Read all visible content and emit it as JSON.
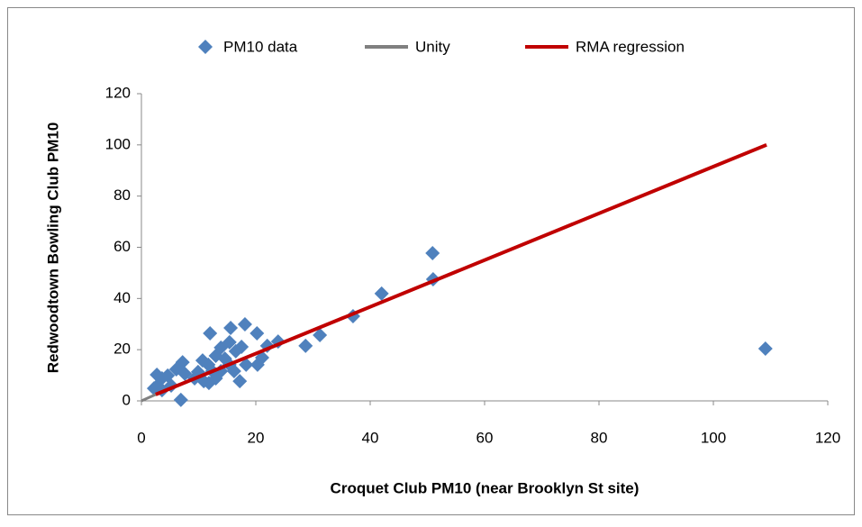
{
  "chart_data": {
    "type": "scatter",
    "x_label": "Croquet Club PM10 (near Brooklyn St site)",
    "y_label": "Redwoodtown Bowling Club PM10",
    "xlim": [
      0,
      120
    ],
    "ylim": [
      0,
      120
    ],
    "xticks": [
      0,
      20,
      40,
      60,
      80,
      100,
      120
    ],
    "yticks": [
      0,
      20,
      40,
      60,
      80,
      100,
      120
    ],
    "grid": false,
    "legend": "top",
    "series": [
      {
        "name": "PM10 data",
        "type": "scatter",
        "color": "#4f81bd",
        "x": [
          109.1,
          50.9,
          51,
          42,
          37,
          31.2,
          28.7,
          23.9,
          22,
          21.1,
          20.3,
          20.2,
          18.1,
          15.6,
          12,
          17.2,
          6.9,
          18.3,
          17.5,
          16.5,
          15.4,
          14.6,
          13.9,
          13,
          11.7,
          10.7,
          9.9,
          9.3,
          7.6,
          7.2,
          6.1,
          4.6,
          3.6,
          2.8,
          2.2,
          2.7,
          5.2,
          3.6,
          12.4,
          10.9,
          13.9,
          15.4,
          16.2,
          13,
          11.8
        ],
        "values": [
          20.4,
          57.7,
          47.5,
          41.9,
          33.1,
          25.7,
          21.5,
          23.2,
          21.5,
          16.9,
          14.1,
          26.4,
          29.9,
          28.5,
          26.4,
          7.7,
          0.4,
          14.1,
          21.1,
          19.4,
          22.9,
          16.5,
          20.8,
          17.6,
          14.1,
          15.8,
          11.3,
          8.8,
          10.6,
          15.1,
          12.3,
          9.9,
          8.8,
          6,
          4.9,
          10.2,
          6,
          4.2,
          11.6,
          7.7,
          11.6,
          14.1,
          11.6,
          8.8,
          7
        ]
      },
      {
        "name": "Unity",
        "type": "line",
        "color": "#808080",
        "x": [
          0,
          5
        ],
        "values": [
          0,
          5
        ]
      },
      {
        "name": "RMA regression",
        "type": "line",
        "color": "#c00000",
        "x": [
          2.5,
          109.3
        ],
        "values": [
          2.5,
          100
        ]
      }
    ]
  }
}
